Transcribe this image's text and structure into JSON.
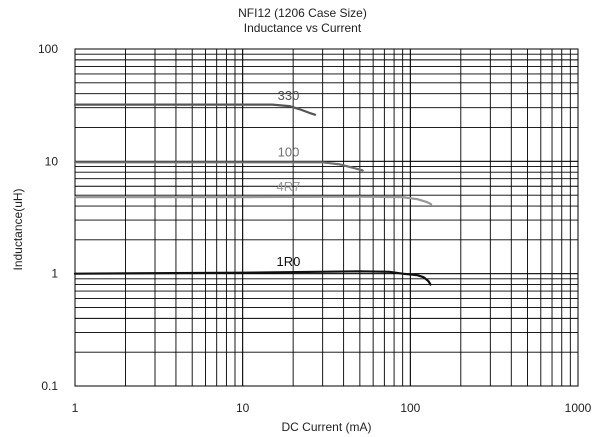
{
  "chart_data": {
    "type": "line",
    "title": "NFI12 (1206 Case Size)",
    "subtitle": "Inductance vs Current",
    "xlabel": "DC Current (mA)",
    "ylabel": "Inductance(uH)",
    "xscale": "log",
    "yscale": "log",
    "xlim": [
      1,
      1000
    ],
    "ylim": [
      0.1,
      100
    ],
    "x_ticks": [
      "1",
      "10",
      "100",
      "1000"
    ],
    "y_ticks": [
      "0.1",
      "1",
      "10",
      "100"
    ],
    "grid": true,
    "series": [
      {
        "name": "330",
        "color": "#555555",
        "x": [
          1,
          5,
          10,
          15,
          19,
          22,
          25,
          27
        ],
        "y": [
          32,
          32,
          32,
          32,
          31,
          29,
          27,
          26
        ]
      },
      {
        "name": "100",
        "color": "#707070",
        "x": [
          1,
          10,
          30,
          38,
          45,
          52
        ],
        "y": [
          9.8,
          9.8,
          9.8,
          9.4,
          8.8,
          8.3
        ]
      },
      {
        "name": "4R7",
        "color": "#999999",
        "x": [
          1,
          10,
          50,
          90,
          110,
          125,
          133
        ],
        "y": [
          4.8,
          4.8,
          4.85,
          4.8,
          4.6,
          4.35,
          4.15
        ]
      },
      {
        "name": "1R0",
        "color": "#111111",
        "x": [
          1,
          10,
          50,
          75,
          90,
          110,
          120,
          128,
          132
        ],
        "y": [
          1.0,
          1.02,
          1.05,
          1.04,
          1.0,
          0.97,
          0.93,
          0.86,
          0.8
        ]
      }
    ]
  }
}
